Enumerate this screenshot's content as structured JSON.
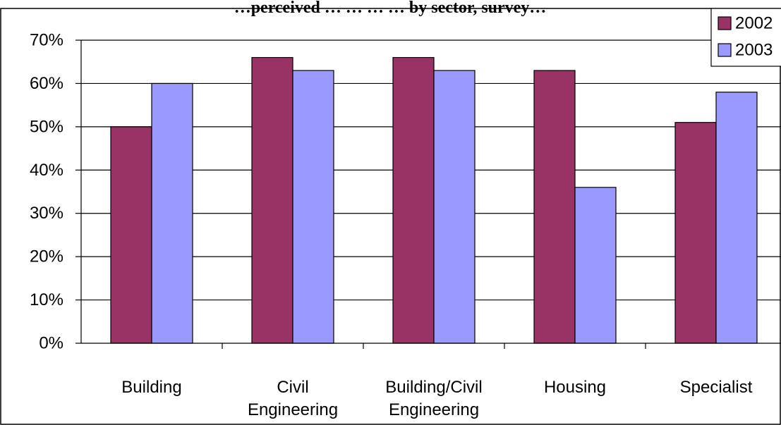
{
  "chart_data": {
    "type": "bar",
    "title": "…perceived … … … … by sector, survey…",
    "categories": [
      [
        "Building"
      ],
      [
        "Civil",
        "Engineering"
      ],
      [
        "Building/Civil",
        "Engineering"
      ],
      [
        "Housing"
      ],
      [
        "Specialist"
      ]
    ],
    "series": [
      {
        "name": "2002",
        "color": "#993366",
        "values": [
          50,
          66,
          66,
          63,
          51
        ]
      },
      {
        "name": "2003",
        "color": "#9999ff",
        "values": [
          60,
          63,
          63,
          36,
          58
        ]
      }
    ],
    "y_ticks": [
      "0%",
      "10%",
      "20%",
      "30%",
      "40%",
      "50%",
      "60%",
      "70%"
    ],
    "ylim": [
      0,
      70
    ],
    "grid": true,
    "legend_position": "top-right"
  }
}
